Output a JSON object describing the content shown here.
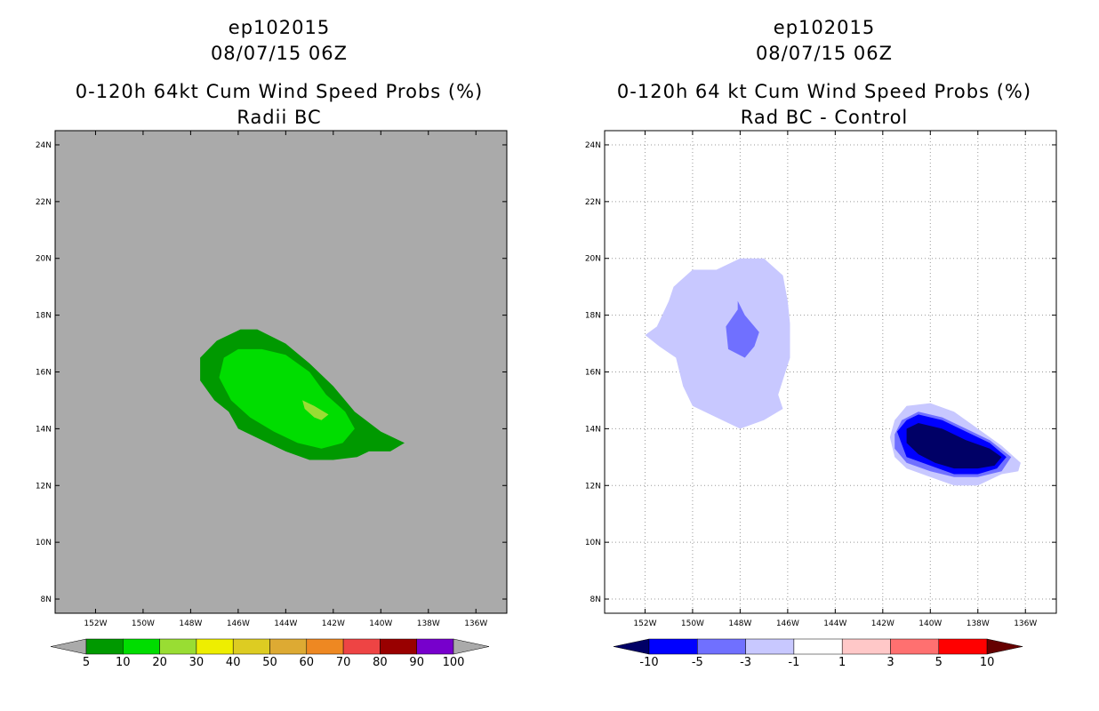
{
  "chart_data": [
    {
      "type": "heatmap",
      "title_line1": "ep102015",
      "title_line2": "08/07/15 06Z",
      "title_line3": "0-120h 64kt Cum Wind Speed Probs (%)",
      "title_line4": "Radii BC",
      "background_color": "#aaaaaa",
      "grid": false,
      "xlim": [
        -153.7,
        -134.7
      ],
      "ylim": [
        7.5,
        24.5
      ],
      "x_ticks": [
        -152,
        -150,
        -148,
        -146,
        -144,
        -142,
        -140,
        -138,
        -136
      ],
      "x_tick_labels": [
        "152W",
        "150W",
        "148W",
        "146W",
        "144W",
        "142W",
        "140W",
        "138W",
        "136W"
      ],
      "y_ticks": [
        8,
        10,
        12,
        14,
        16,
        18,
        20,
        22,
        24
      ],
      "y_tick_labels": [
        "8N",
        "10N",
        "12N",
        "14N",
        "16N",
        "18N",
        "20N",
        "22N",
        "24N"
      ],
      "contours": [
        {
          "level": "5-10",
          "color": "#009900",
          "polygon": [
            [
              -147.6,
              16.5
            ],
            [
              -146.9,
              17.1
            ],
            [
              -145.9,
              17.5
            ],
            [
              -145.2,
              17.5
            ],
            [
              -144.0,
              17.0
            ],
            [
              -143.0,
              16.3
            ],
            [
              -142.0,
              15.5
            ],
            [
              -141.1,
              14.6
            ],
            [
              -140.0,
              13.9
            ],
            [
              -139.0,
              13.5
            ],
            [
              -139.6,
              13.2
            ],
            [
              -140.5,
              13.2
            ],
            [
              -141.0,
              13.0
            ],
            [
              -142.0,
              12.9
            ],
            [
              -143.0,
              12.9
            ],
            [
              -144.0,
              13.2
            ],
            [
              -145.0,
              13.6
            ],
            [
              -146.0,
              14.0
            ],
            [
              -146.4,
              14.6
            ],
            [
              -147.0,
              15.0
            ],
            [
              -147.6,
              15.7
            ],
            [
              -147.6,
              16.5
            ]
          ]
        },
        {
          "level": "10-20",
          "color": "#00dd00",
          "polygon": [
            [
              -146.6,
              16.5
            ],
            [
              -146.0,
              16.8
            ],
            [
              -145.0,
              16.8
            ],
            [
              -144.0,
              16.6
            ],
            [
              -143.0,
              16.0
            ],
            [
              -142.3,
              15.2
            ],
            [
              -141.5,
              14.6
            ],
            [
              -141.1,
              14.0
            ],
            [
              -141.6,
              13.5
            ],
            [
              -142.5,
              13.3
            ],
            [
              -143.5,
              13.5
            ],
            [
              -144.5,
              13.9
            ],
            [
              -145.5,
              14.4
            ],
            [
              -146.3,
              15.0
            ],
            [
              -146.8,
              15.8
            ],
            [
              -146.6,
              16.5
            ]
          ]
        },
        {
          "level": "20-30",
          "color": "#99dd33",
          "polygon": [
            [
              -143.3,
              15.0
            ],
            [
              -142.8,
              14.8
            ],
            [
              -142.2,
              14.5
            ],
            [
              -142.5,
              14.3
            ],
            [
              -142.8,
              14.4
            ],
            [
              -143.2,
              14.7
            ],
            [
              -143.3,
              15.0
            ]
          ]
        }
      ],
      "colorbar": {
        "labels": [
          "5",
          "10",
          "20",
          "30",
          "40",
          "50",
          "60",
          "70",
          "80",
          "90",
          "100"
        ],
        "colors": [
          "#009900",
          "#00dd00",
          "#99dd33",
          "#eeee00",
          "#ddcc22",
          "#ddaa33",
          "#ee8822",
          "#ee4444",
          "#990000",
          "#7700cc"
        ],
        "under_color": "#aaaaaa",
        "over_color": "#aaaaaa"
      }
    },
    {
      "type": "heatmap",
      "title_line1": "ep102015",
      "title_line2": "08/07/15 06Z",
      "title_line3": "0-120h 64 kt Cum Wind Speed Probs (%)",
      "title_line4": "Rad BC - Control",
      "background_color": "#ffffff",
      "grid": true,
      "xlim": [
        -153.7,
        -134.7
      ],
      "ylim": [
        7.5,
        24.5
      ],
      "x_ticks": [
        -152,
        -150,
        -148,
        -146,
        -144,
        -142,
        -140,
        -138,
        -136
      ],
      "x_tick_labels": [
        "152W",
        "150W",
        "148W",
        "146W",
        "144W",
        "142W",
        "140W",
        "138W",
        "136W"
      ],
      "y_ticks": [
        8,
        10,
        12,
        14,
        16,
        18,
        20,
        22,
        24
      ],
      "y_tick_labels": [
        "8N",
        "10N",
        "12N",
        "14N",
        "16N",
        "18N",
        "20N",
        "22N",
        "24N"
      ],
      "contours": [
        {
          "level": "-3 to -1",
          "color": "#c8c8ff",
          "polygon": [
            [
              -152.0,
              17.3
            ],
            [
              -151.5,
              17.6
            ],
            [
              -151.0,
              18.5
            ],
            [
              -150.8,
              19.0
            ],
            [
              -150.0,
              19.6
            ],
            [
              -149.0,
              19.6
            ],
            [
              -148.0,
              20.0
            ],
            [
              -147.0,
              20.0
            ],
            [
              -146.2,
              19.4
            ],
            [
              -146.0,
              18.5
            ],
            [
              -145.9,
              17.7
            ],
            [
              -145.9,
              16.5
            ],
            [
              -146.4,
              15.2
            ],
            [
              -146.2,
              14.7
            ],
            [
              -147.0,
              14.3
            ],
            [
              -148.0,
              14.0
            ],
            [
              -149.0,
              14.4
            ],
            [
              -150.0,
              14.8
            ],
            [
              -150.4,
              15.5
            ],
            [
              -150.7,
              16.5
            ],
            [
              -151.4,
              16.9
            ],
            [
              -152.0,
              17.3
            ]
          ]
        },
        {
          "level": "-5 to -3",
          "color": "#7070ff",
          "polygon": [
            [
              -148.1,
              18.5
            ],
            [
              -147.8,
              18.0
            ],
            [
              -147.2,
              17.4
            ],
            [
              -147.4,
              16.9
            ],
            [
              -147.8,
              16.5
            ],
            [
              -148.5,
              16.8
            ],
            [
              -148.6,
              17.6
            ],
            [
              -148.1,
              18.2
            ],
            [
              -148.1,
              18.5
            ]
          ]
        },
        {
          "level": "-3 to -1",
          "color": "#c8c8ff",
          "polygon": [
            [
              -141.7,
              13.7
            ],
            [
              -141.5,
              14.3
            ],
            [
              -141.0,
              14.8
            ],
            [
              -140.0,
              14.9
            ],
            [
              -139.0,
              14.6
            ],
            [
              -138.0,
              14.0
            ],
            [
              -137.0,
              13.4
            ],
            [
              -136.2,
              12.8
            ],
            [
              -136.3,
              12.5
            ],
            [
              -137.0,
              12.4
            ],
            [
              -138.0,
              12.0
            ],
            [
              -139.0,
              12.0
            ],
            [
              -140.0,
              12.3
            ],
            [
              -141.0,
              12.6
            ],
            [
              -141.5,
              13.0
            ],
            [
              -141.7,
              13.7
            ]
          ]
        },
        {
          "level": "-5 to -3",
          "color": "#7070ff",
          "polygon": [
            [
              -141.5,
              13.8
            ],
            [
              -141.2,
              14.3
            ],
            [
              -140.5,
              14.6
            ],
            [
              -139.5,
              14.4
            ],
            [
              -138.5,
              14.0
            ],
            [
              -137.5,
              13.6
            ],
            [
              -136.6,
              13.0
            ],
            [
              -137.0,
              12.5
            ],
            [
              -138.0,
              12.3
            ],
            [
              -139.0,
              12.3
            ],
            [
              -140.0,
              12.5
            ],
            [
              -141.0,
              12.8
            ],
            [
              -141.5,
              13.3
            ],
            [
              -141.5,
              13.8
            ]
          ]
        },
        {
          "level": "-10 to -5",
          "color": "#0000ff",
          "polygon": [
            [
              -141.4,
              13.9
            ],
            [
              -141.0,
              14.3
            ],
            [
              -140.5,
              14.5
            ],
            [
              -139.5,
              14.3
            ],
            [
              -138.5,
              13.9
            ],
            [
              -137.5,
              13.5
            ],
            [
              -136.8,
              13.0
            ],
            [
              -137.2,
              12.6
            ],
            [
              -138.0,
              12.4
            ],
            [
              -139.0,
              12.4
            ],
            [
              -140.0,
              12.7
            ],
            [
              -141.0,
              13.0
            ],
            [
              -141.4,
              13.9
            ]
          ]
        },
        {
          "level": "below -10",
          "color": "#000066",
          "polygon": [
            [
              -141.0,
              14.0
            ],
            [
              -140.5,
              14.2
            ],
            [
              -139.5,
              14.0
            ],
            [
              -138.5,
              13.6
            ],
            [
              -137.5,
              13.3
            ],
            [
              -137.0,
              13.0
            ],
            [
              -137.3,
              12.7
            ],
            [
              -138.0,
              12.6
            ],
            [
              -139.0,
              12.6
            ],
            [
              -139.8,
              12.8
            ],
            [
              -140.5,
              13.1
            ],
            [
              -141.0,
              13.5
            ],
            [
              -141.0,
              14.0
            ]
          ]
        }
      ],
      "colorbar": {
        "labels": [
          "-10",
          "-5",
          "-3",
          "-1",
          "1",
          "3",
          "5",
          "10"
        ],
        "colors": [
          "#0000ff",
          "#7070ff",
          "#c8c8ff",
          "#ffffff",
          "#ffc8c8",
          "#ff7070",
          "#ff0000"
        ],
        "under_color": "#000066",
        "over_color": "#660000"
      }
    }
  ]
}
